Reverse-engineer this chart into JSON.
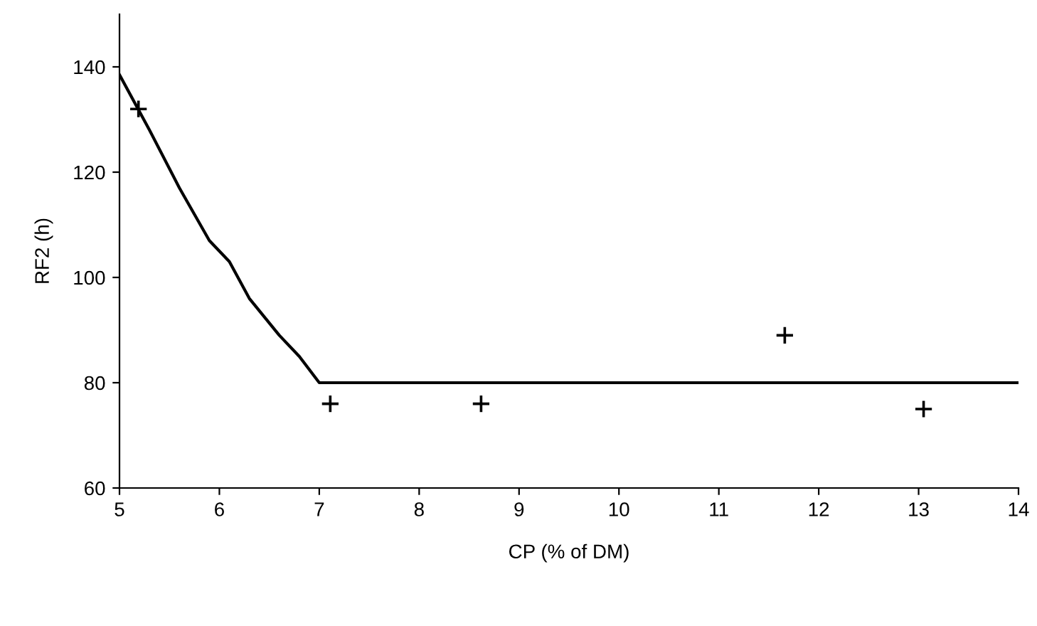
{
  "chart_data": {
    "type": "scatter",
    "xlabel": "CP (% of DM)",
    "ylabel": "RF2 (h)",
    "series": [
      {
        "color": "#000000",
        "marker": "cross",
        "x": [
          5.19,
          7.11,
          8.62,
          11.66,
          13.05
        ],
        "values": [
          132,
          76,
          76,
          89,
          75
        ]
      },
      {
        "type": "line",
        "color": "#000000",
        "marker": "none",
        "x": [
          5.0,
          5.3,
          5.6,
          5.9,
          6.1,
          6.3,
          6.6,
          6.8,
          7.0,
          14.0
        ],
        "values": [
          138.5,
          128,
          117,
          107,
          103,
          96,
          89,
          85,
          80,
          80
        ]
      }
    ],
    "xlim": [
      5,
      14
    ],
    "xticks": [
      5,
      6,
      7,
      8,
      9,
      10,
      11,
      12,
      13,
      14
    ],
    "ylim": [
      60,
      150
    ],
    "yticks": [
      60,
      80,
      100,
      120,
      140
    ],
    "grid": false,
    "legend": false
  }
}
